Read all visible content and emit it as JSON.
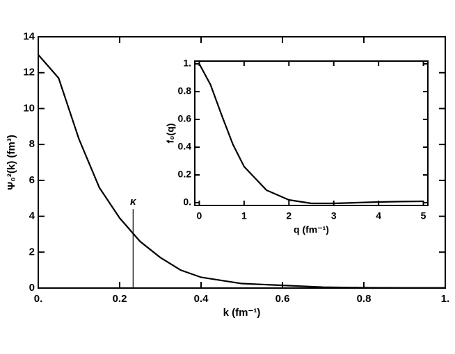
{
  "chart_data": [
    {
      "type": "line",
      "xlabel": "k (fm⁻¹)",
      "ylabel": "Ψ₀²(k) (fm³)",
      "x": [
        0,
        0.05,
        0.1,
        0.15,
        0.2,
        0.25,
        0.3,
        0.35,
        0.4,
        0.5,
        0.6,
        0.7,
        0.8,
        0.9,
        1.0
      ],
      "series": [
        {
          "color": "#000000",
          "values": [
            13,
            11.7,
            8.3,
            5.6,
            3.9,
            2.6,
            1.7,
            1.0,
            0.6,
            0.25,
            0.15,
            0.05,
            0.02,
            0.01,
            0.01
          ]
        }
      ],
      "xlim": [
        0,
        1
      ],
      "xticks": [
        {
          "value": 0,
          "label": "0."
        },
        0.2,
        0.4,
        0.6,
        0.8,
        {
          "value": 1,
          "label": "1."
        }
      ],
      "ylim": [
        0,
        14
      ],
      "yticks": [
        0,
        2,
        4,
        6,
        8,
        10,
        12,
        14
      ],
      "annotations": [
        {
          "text": "κ",
          "x": 0.233,
          "y": 4.4
        }
      ]
    },
    {
      "type": "line",
      "xlabel": "q (fm⁻¹)",
      "ylabel": "f₀(q)",
      "x": [
        0,
        0.25,
        0.5,
        0.75,
        1,
        1.5,
        2,
        2.5,
        3,
        3.5,
        4,
        4.5,
        5
      ],
      "series": [
        {
          "color": "#000000",
          "values": [
            1,
            0.85,
            0.63,
            0.42,
            0.26,
            0.09,
            0.02,
            -0.005,
            -0.005,
            0,
            0.005,
            0.008,
            0.01
          ]
        }
      ],
      "xlim": [
        -0.1,
        5.1
      ],
      "xticks": [
        0,
        1,
        2,
        3,
        4,
        5
      ],
      "ylim": [
        -0.02,
        1.02
      ],
      "yticks": [
        {
          "value": 0,
          "label": "0."
        },
        0.2,
        0.4,
        0.6,
        0.8,
        {
          "value": 1,
          "label": "1."
        }
      ]
    }
  ]
}
